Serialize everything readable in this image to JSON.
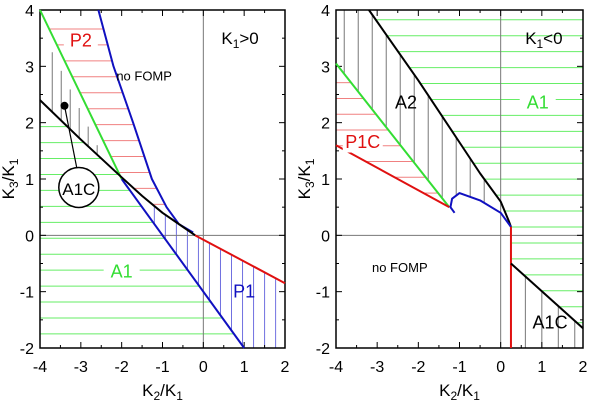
{
  "colors": {
    "green": "#33dd33",
    "red": "#e01010",
    "blue": "#1010c0",
    "black": "#000000",
    "gray": "#777777",
    "hatch_green": "#66ee66",
    "hatch_red": "#f08080",
    "hatch_blue": "#7070e0"
  },
  "chart_data": [
    {
      "type": "line",
      "xlim": [
        -4,
        2
      ],
      "ylim": [
        -2,
        4
      ],
      "xticks": [
        "-4",
        "-3",
        "-2",
        "-1",
        "0",
        "1",
        "2"
      ],
      "yticks": [
        "-2",
        "-1",
        "0",
        "1",
        "2",
        "3",
        "4"
      ],
      "xlabel": {
        "a": "K",
        "a_sub": "2",
        "b": "/K",
        "b_sub": "1"
      },
      "ylabel": {
        "a": "K",
        "a_sub": "3",
        "b": "/K",
        "b_sub": "1"
      },
      "title": {
        "a": "K",
        "a_sub": "1",
        "b": ">0"
      },
      "regions": {
        "P2": "P2",
        "no_fomp": "no FOMP",
        "A1": "A1",
        "P1": "P1",
        "A1C": "A1C"
      },
      "curves": {
        "green": [
          [
            -4,
            4
          ],
          [
            -2,
            1
          ]
        ],
        "blue_line": [
          [
            -2,
            1
          ],
          [
            1,
            -2
          ]
        ],
        "blue_curve": [
          [
            -2.57,
            4
          ],
          [
            -2.2,
            3
          ],
          [
            -1.72,
            2
          ],
          [
            -1.26,
            1
          ],
          [
            -0.9,
            0.5
          ],
          [
            -0.6,
            0.2
          ],
          [
            -0.25,
            0.05
          ]
        ],
        "black": [
          [
            -4,
            2.4
          ],
          [
            -3,
            1.7
          ],
          [
            -2,
            1.03
          ],
          [
            -1.5,
            0.7
          ],
          [
            -1,
            0.4
          ],
          [
            -0.5,
            0.15
          ],
          [
            -0.2,
            0.0
          ]
        ],
        "red": [
          [
            -0.2,
            0
          ],
          [
            2,
            -0.85
          ]
        ]
      },
      "marker_point": [
        -3.4,
        2.3
      ]
    },
    {
      "type": "line",
      "xlim": [
        -4,
        2
      ],
      "ylim": [
        -2,
        4
      ],
      "xticks": [
        "-4",
        "-3",
        "-2",
        "-1",
        "0",
        "1",
        "2"
      ],
      "yticks": [
        "-2",
        "-1",
        "0",
        "1",
        "2",
        "3",
        "4"
      ],
      "xlabel": {
        "a": "K",
        "a_sub": "2",
        "b": "/K",
        "b_sub": "1"
      },
      "ylabel": {
        "a": "K",
        "a_sub": "3",
        "b": "/K",
        "b_sub": "1"
      },
      "title": {
        "a": "K",
        "a_sub": "1",
        "b": "<0"
      },
      "regions": {
        "A1": "A1",
        "A2": "A2",
        "P1C": "P1C",
        "no_fomp": "no FOMP",
        "A1C": "A1C"
      },
      "curves": {
        "black": [
          [
            -3.2,
            4
          ],
          [
            -2,
            2.75
          ],
          [
            -1,
            1.65
          ],
          [
            -0.5,
            1.1
          ],
          [
            0,
            0.6
          ],
          [
            0.2,
            0.25
          ],
          [
            0.25,
            0.15
          ]
        ],
        "green": [
          [
            -4,
            3.05
          ],
          [
            -1.25,
            0.5
          ]
        ],
        "red": [
          [
            -4,
            1.6
          ],
          [
            -1.25,
            0.5
          ]
        ],
        "blue": [
          [
            -1.12,
            0.4
          ],
          [
            -1.22,
            0.5
          ],
          [
            -1.18,
            0.65
          ],
          [
            -1,
            0.75
          ],
          [
            -0.5,
            0.62
          ],
          [
            0,
            0.4
          ],
          [
            0.25,
            0.15
          ]
        ],
        "red_vertical": [
          [
            0.25,
            0.15
          ],
          [
            0.25,
            -2
          ]
        ],
        "black_lower": [
          [
            0.25,
            -0.5
          ],
          [
            2,
            -1.65
          ]
        ]
      }
    }
  ]
}
